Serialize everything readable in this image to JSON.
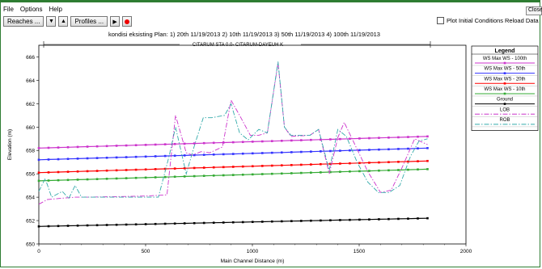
{
  "menu": {
    "file": "File",
    "options": "Options",
    "help": "Help"
  },
  "window": {
    "close_label": "Close"
  },
  "toolbar": {
    "reaches_label": "Reaches ...",
    "profiles_label": "Profiles ...",
    "down_icon": "arrow-down-icon",
    "up_icon": "arrow-up-icon",
    "play_icon": "play-icon",
    "record_icon": "record-icon",
    "plot_initial_conditions_label": "Plot Initial Conditions",
    "plot_initial_conditions_checked": false,
    "reload_label": "Reload Data"
  },
  "chart_data": {
    "type": "line",
    "title": "kondisi eksisting     Plan:   1) 20th    11/19/2013    2) 10th    11/19/2013    3) 50th    11/19/2013    4) 100th    11/19/2013",
    "subtitle": "CITARUM STA 0.0- CITARUM-DAYEUH K",
    "xlabel": "Main Channel Distance (m)",
    "ylabel": "Elevation (m)",
    "xlim": [
      0,
      2000
    ],
    "ylim": [
      650,
      667
    ],
    "xticks": [
      "0",
      "500",
      "1000",
      "1500",
      "2000"
    ],
    "yticks": [
      "650",
      "652",
      "654",
      "656",
      "658",
      "660",
      "662",
      "664",
      "666"
    ],
    "legend_title": "Legend",
    "legend_placement": "top-right",
    "series": [
      {
        "name": "WS  Max WS - 100th",
        "color": "#cc33cc",
        "style": "solid-marker",
        "x": [
          0,
          1820
        ],
        "y": [
          658.2,
          659.2
        ]
      },
      {
        "name": "WS  Max WS - 50th",
        "color": "#3333ff",
        "style": "solid-marker",
        "x": [
          0,
          1820
        ],
        "y": [
          657.2,
          658.2
        ]
      },
      {
        "name": "WS  Max WS - 20th",
        "color": "#ff0000",
        "style": "solid-marker",
        "x": [
          0,
          1820
        ],
        "y": [
          656.1,
          657.1
        ]
      },
      {
        "name": "WS  Max WS - 10th",
        "color": "#33aa33",
        "style": "solid-marker",
        "x": [
          0,
          1820
        ],
        "y": [
          655.4,
          656.4
        ]
      },
      {
        "name": "Ground",
        "color": "#000000",
        "style": "solid-marker",
        "x": [
          0,
          1820
        ],
        "y": [
          651.5,
          652.2
        ]
      },
      {
        "name": "LOB",
        "color": "#cc33cc",
        "style": "dashdot",
        "x": [
          0,
          40,
          100,
          170,
          230,
          500,
          600,
          640,
          690,
          720,
          760,
          800,
          860,
          900,
          940,
          990,
          1030,
          1070,
          1120,
          1150,
          1180,
          1270,
          1310,
          1360,
          1400,
          1430,
          1480,
          1540,
          1600,
          1650,
          1700,
          1760,
          1820
        ],
        "y": [
          653.4,
          653.8,
          653.9,
          654.0,
          654.0,
          654.1,
          654.2,
          661.0,
          657.8,
          657.6,
          657.9,
          657.8,
          658.3,
          662.3,
          661.0,
          659.3,
          659.3,
          659.5,
          665.5,
          660.0,
          659.2,
          659.3,
          659.8,
          656.0,
          659.1,
          660.4,
          658.5,
          656.2,
          654.4,
          654.6,
          656.5,
          659.0,
          658.5
        ]
      },
      {
        "name": "ROB",
        "color": "#33aaaa",
        "style": "dashdot",
        "x": [
          0,
          30,
          60,
          110,
          140,
          170,
          200,
          350,
          560,
          610,
          640,
          690,
          730,
          770,
          810,
          870,
          900,
          940,
          980,
          1030,
          1070,
          1120,
          1150,
          1180,
          1270,
          1310,
          1360,
          1400,
          1440,
          1490,
          1540,
          1590,
          1640,
          1690,
          1740,
          1780,
          1820
        ],
        "y": [
          654.5,
          655.6,
          654.0,
          654.5,
          653.9,
          655.0,
          654.0,
          654.0,
          654.0,
          657.5,
          660.0,
          656.0,
          658.5,
          660.8,
          660.8,
          661.0,
          662.0,
          659.5,
          658.9,
          659.8,
          659.5,
          665.6,
          660.0,
          659.3,
          659.3,
          659.8,
          656.3,
          659.8,
          659.2,
          657.0,
          655.3,
          654.4,
          654.4,
          655.0,
          657.5,
          658.8,
          659.0
        ]
      }
    ]
  }
}
